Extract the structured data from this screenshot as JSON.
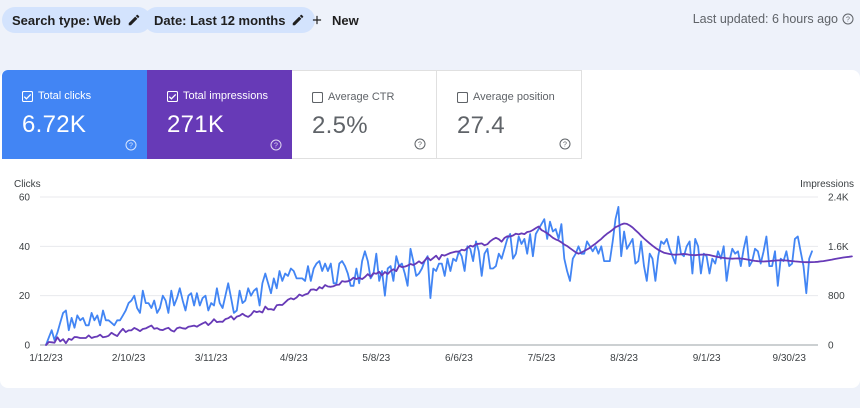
{
  "toolbar": {
    "search_type": "Search type: Web",
    "date_range": "Date: Last 12 months",
    "new_label": "New",
    "last_updated": "Last updated: 6 hours ago"
  },
  "metrics": [
    {
      "label": "Total clicks",
      "value": "6.72K",
      "checked": true,
      "color": "#4285f4"
    },
    {
      "label": "Total impressions",
      "value": "271K",
      "checked": true,
      "color": "#673ab7"
    },
    {
      "label": "Average CTR",
      "value": "2.5%",
      "checked": false
    },
    {
      "label": "Average position",
      "value": "27.4",
      "checked": false
    }
  ],
  "icons": [
    "pencil-icon",
    "plus-icon",
    "help-icon",
    "checkbox-icon"
  ],
  "colors": {
    "clicks": "#4285f4",
    "impressions": "#673ab7",
    "grid": "#e8eaed",
    "axis": "#3c4043"
  },
  "chart_data": {
    "type": "line",
    "title": "",
    "ylabel_left": "Clicks",
    "ylabel_right": "Impressions",
    "ylim_left": [
      0,
      60
    ],
    "ylim_right": [
      0,
      2400
    ],
    "yticks_left": [
      "0",
      "20",
      "40",
      "60"
    ],
    "yticks_right": [
      "0",
      "800",
      "1.6K",
      "2.4K"
    ],
    "x_tick_labels": [
      "1/12/23",
      "2/10/23",
      "3/11/23",
      "4/9/23",
      "5/8/23",
      "6/6/23",
      "7/5/23",
      "8/3/23",
      "9/1/23",
      "9/30/23"
    ],
    "x_tick_index": [
      0,
      29,
      58,
      87,
      116,
      145,
      174,
      203,
      232,
      261
    ],
    "x_count": 270,
    "series": [
      {
        "name": "Clicks",
        "axis": "left",
        "color": "#4285f4",
        "values": [
          0,
          3,
          6,
          2,
          5,
          9,
          13,
          14,
          6,
          11,
          7,
          12,
          10,
          11,
          8,
          8,
          13,
          10,
          12,
          8,
          14,
          10,
          10,
          9,
          8,
          10,
          10,
          12,
          14,
          17,
          18,
          20,
          15,
          13,
          22,
          17,
          17,
          15,
          18,
          13,
          15,
          20,
          18,
          13,
          22,
          16,
          19,
          23,
          18,
          14,
          20,
          21,
          16,
          21,
          16,
          19,
          20,
          14,
          17,
          16,
          23,
          17,
          15,
          20,
          25,
          19,
          13,
          14,
          22,
          17,
          18,
          23,
          20,
          22,
          23,
          16,
          25,
          29,
          25,
          21,
          27,
          23,
          30,
          26,
          29,
          28,
          31,
          30,
          27,
          27,
          27,
          26,
          32,
          26,
          31,
          33,
          34,
          30,
          33,
          30,
          33,
          25,
          25,
          33,
          34,
          32,
          29,
          24,
          24,
          31,
          25,
          34,
          38,
          34,
          27,
          29,
          37,
          26,
          30,
          20,
          31,
          32,
          26,
          36,
          32,
          33,
          29,
          24,
          39,
          34,
          28,
          29,
          31,
          34,
          36,
          19,
          31,
          30,
          33,
          33,
          28,
          35,
          30,
          35,
          34,
          38,
          36,
          30,
          40,
          39,
          34,
          42,
          38,
          28,
          37,
          39,
          31,
          31,
          32,
          37,
          35,
          39,
          43,
          45,
          35,
          37,
          44,
          41,
          43,
          37,
          45,
          36,
          45,
          47,
          49,
          51,
          43,
          50,
          46,
          47,
          43,
          49,
          35,
          30,
          26,
          35,
          37,
          40,
          37,
          37,
          42,
          40,
          38,
          40,
          37,
          40,
          34,
          34,
          34,
          42,
          51,
          56,
          36,
          46,
          39,
          41,
          43,
          33,
          34,
          42,
          32,
          26,
          37,
          35,
          26,
          36,
          42,
          41,
          43,
          39,
          36,
          33,
          44,
          37,
          36,
          40,
          42,
          29,
          43,
          40,
          29,
          37,
          36,
          29,
          35,
          33,
          38,
          35,
          40,
          26,
          34,
          39,
          37,
          38,
          32,
          39,
          44,
          32,
          34,
          39,
          38,
          33,
          38,
          44,
          32,
          32,
          38,
          24,
          35,
          34,
          38,
          32,
          33,
          43,
          44,
          38,
          32,
          21,
          35,
          38
        ]
      },
      {
        "name": "Impressions",
        "axis": "right",
        "color": "#673ab7",
        "values": [
          0,
          49,
          43,
          37,
          125,
          59,
          94,
          29,
          100,
          82,
          129,
          126,
          113,
          114,
          114,
          156,
          114,
          130,
          138,
          167,
          125,
          133,
          149,
          198,
          169,
          145,
          209,
          262,
          209,
          237,
          239,
          278,
          255,
          225,
          259,
          269,
          293,
          317,
          263,
          274,
          248,
          241,
          264,
          279,
          236,
          218,
          273,
          286,
          270,
          264,
          296,
          305,
          315,
          296,
          326,
          350,
          371,
          323,
          364,
          418,
          372,
          380,
          377,
          420,
          434,
          467,
          413,
          460,
          474,
          506,
          475,
          455,
          489,
          551,
          533,
          547,
          527,
          622,
          579,
          582,
          567,
          644,
          652,
          649,
          692,
          735,
          757,
          740,
          771,
          819,
          797,
          819,
          834,
          897,
          902,
          887,
          939,
          917,
          971,
          948,
          943,
          953,
          977,
          980,
          1037,
          1026,
          1033,
          1054,
          1092,
          1069,
          1089,
          1068,
          1103,
          1149,
          1107,
          1166,
          1157,
          1187,
          1131,
          1184,
          1152,
          1199,
          1228,
          1199,
          1285,
          1263,
          1272,
          1288,
          1313,
          1298,
          1324,
          1357,
          1321,
          1368,
          1420,
          1373,
          1411,
          1448,
          1386,
          1461,
          1450,
          1471,
          1492,
          1503,
          1517,
          1513,
          1545,
          1534,
          1575,
          1611,
          1596,
          1635,
          1641,
          1647,
          1616,
          1635,
          1681,
          1716,
          1739,
          1716,
          1675,
          1737,
          1763,
          1760,
          1775,
          1805,
          1793,
          1809,
          1799,
          1832,
          1840,
          1865,
          1896,
          1921,
          1864,
          1841,
          1812,
          1777,
          1739,
          1713,
          1693,
          1666,
          1628,
          1605,
          1569,
          1537,
          1503,
          1480,
          1498,
          1525,
          1549,
          1577,
          1612,
          1644,
          1683,
          1721,
          1764,
          1803,
          1834,
          1869,
          1911,
          1931,
          1954,
          1971,
          1963,
          1938,
          1905,
          1861,
          1819,
          1773,
          1727,
          1688,
          1648,
          1610,
          1575,
          1543,
          1519,
          1497,
          1486,
          1475,
          1468,
          1465,
          1468,
          1471,
          1477,
          1470,
          1461,
          1459,
          1456,
          1461,
          1464,
          1468,
          1466,
          1459,
          1448,
          1436,
          1427,
          1418,
          1412,
          1406,
          1403,
          1400,
          1402,
          1404,
          1402,
          1396,
          1388,
          1380,
          1370,
          1364,
          1359,
          1356,
          1354,
          1357,
          1361,
          1366,
          1369,
          1372,
          1373,
          1372,
          1370,
          1366,
          1361,
          1356,
          1352,
          1348,
          1345,
          1343,
          1343,
          1344,
          1346,
          1350,
          1355,
          1361,
          1368,
          1376,
          1385,
          1394,
          1402,
          1411,
          1419,
          1425,
          1431,
          1436
        ]
      }
    ]
  }
}
